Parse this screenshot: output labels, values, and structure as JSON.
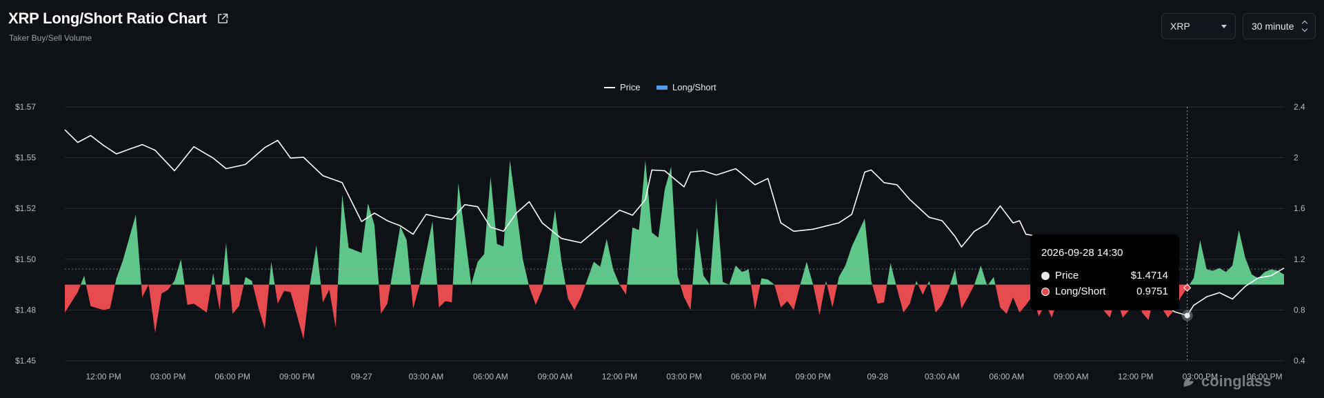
{
  "header": {
    "title": "XRP Long/Short Ratio Chart",
    "subtitle": "Taker Buy/Sell Volume",
    "symbol_select": "XRP",
    "interval_select": "30 minute"
  },
  "colors": {
    "background": "#0e1116",
    "price_line": "#ffffff",
    "long_fill": "#5fc68a",
    "short_fill": "#e64b50",
    "legend_ls": "#4f9df0",
    "grid": "#2a2f36"
  },
  "tooltip": {
    "date": "2026-09-28 14:30",
    "price_label": "Price",
    "price_value": "$1.4714",
    "ls_label": "Long/Short",
    "ls_value": "0.9751"
  },
  "watermark": "coinglass",
  "chart_data": {
    "type": "line",
    "legend": [
      {
        "name": "Price",
        "icon": "line"
      },
      {
        "name": "Long/Short",
        "icon": "area"
      }
    ],
    "legend_position": "top-center",
    "grid": true,
    "y_left": {
      "ticks": [
        "$1.57",
        "$1.55",
        "$1.52",
        "$1.50",
        "$1.48",
        "$1.45"
      ],
      "range": [
        1.45,
        1.57
      ]
    },
    "y_right": {
      "ticks": [
        "2.4",
        "2",
        "1.6",
        "1.2",
        "0.8",
        "0.4"
      ],
      "range": [
        0.4,
        2.4
      ],
      "baseline": 1.0
    },
    "x_ticks": [
      {
        "i": 6,
        "label": "12:00 PM"
      },
      {
        "i": 16,
        "label": "03:00 PM"
      },
      {
        "i": 26,
        "label": "06:00 PM"
      },
      {
        "i": 36,
        "label": "09:00 PM"
      },
      {
        "i": 46,
        "label": "09-27"
      },
      {
        "i": 56,
        "label": "03:00 AM"
      },
      {
        "i": 66,
        "label": "06:00 AM"
      },
      {
        "i": 76,
        "label": "09:00 AM"
      },
      {
        "i": 86,
        "label": "12:00 PM"
      },
      {
        "i": 96,
        "label": "03:00 PM"
      },
      {
        "i": 106,
        "label": "06:00 PM"
      },
      {
        "i": 116,
        "label": "09:00 PM"
      },
      {
        "i": 126,
        "label": "09-28"
      },
      {
        "i": 136,
        "label": "03:00 AM"
      },
      {
        "i": 146,
        "label": "06:00 AM"
      },
      {
        "i": 156,
        "label": "09:00 AM"
      },
      {
        "i": 166,
        "label": "12:00 PM"
      },
      {
        "i": 176,
        "label": "03:00 PM"
      },
      {
        "i": 186,
        "label": "06:00 PM"
      }
    ],
    "n_points": 190,
    "hover_index": 174,
    "price_anchors": [
      [
        0,
        1.5592
      ],
      [
        2,
        1.5532
      ],
      [
        4,
        1.5565
      ],
      [
        6,
        1.5518
      ],
      [
        8,
        1.5478
      ],
      [
        12,
        1.5522
      ],
      [
        14,
        1.5495
      ],
      [
        17,
        1.5398
      ],
      [
        20,
        1.5512
      ],
      [
        23,
        1.5458
      ],
      [
        25,
        1.5408
      ],
      [
        28,
        1.5428
      ],
      [
        31,
        1.5508
      ],
      [
        33,
        1.5542
      ],
      [
        35,
        1.5458
      ],
      [
        37,
        1.5462
      ],
      [
        40,
        1.5375
      ],
      [
        43,
        1.5342
      ],
      [
        46,
        1.5158
      ],
      [
        48,
        1.5198
      ],
      [
        50,
        1.5162
      ],
      [
        52,
        1.5138
      ],
      [
        54,
        1.5098
      ],
      [
        56,
        1.5192
      ],
      [
        58,
        1.5178
      ],
      [
        60,
        1.5168
      ],
      [
        62,
        1.5238
      ],
      [
        64,
        1.5228
      ],
      [
        66,
        1.5132
      ],
      [
        68,
        1.5112
      ],
      [
        70,
        1.5198
      ],
      [
        72,
        1.5252
      ],
      [
        74,
        1.5152
      ],
      [
        77,
        1.5078
      ],
      [
        80,
        1.5058
      ],
      [
        83,
        1.5135
      ],
      [
        86,
        1.5212
      ],
      [
        88,
        1.5188
      ],
      [
        90,
        1.5262
      ],
      [
        91,
        1.5402
      ],
      [
        93,
        1.5398
      ],
      [
        96,
        1.5322
      ],
      [
        97,
        1.5392
      ],
      [
        99,
        1.5398
      ],
      [
        101,
        1.5378
      ],
      [
        104,
        1.5408
      ],
      [
        107,
        1.5332
      ],
      [
        109,
        1.5362
      ],
      [
        111,
        1.5152
      ],
      [
        113,
        1.5112
      ],
      [
        116,
        1.5122
      ],
      [
        120,
        1.5152
      ],
      [
        122,
        1.5192
      ],
      [
        124,
        1.5392
      ],
      [
        125,
        1.5402
      ],
      [
        127,
        1.5342
      ],
      [
        129,
        1.5332
      ],
      [
        131,
        1.5262
      ],
      [
        134,
        1.5178
      ],
      [
        136,
        1.5162
      ],
      [
        138,
        1.5088
      ],
      [
        139,
        1.5038
      ],
      [
        141,
        1.5112
      ],
      [
        143,
        1.5148
      ],
      [
        145,
        1.5232
      ],
      [
        147,
        1.5152
      ],
      [
        148,
        1.5162
      ],
      [
        149,
        1.5098
      ],
      [
        152,
        1.5082
      ],
      [
        155,
        1.5
      ],
      [
        158,
        1.4962
      ],
      [
        161,
        1.4912
      ],
      [
        164,
        1.4862
      ],
      [
        167,
        1.4822
      ],
      [
        170,
        1.4782
      ],
      [
        172,
        1.4732
      ],
      [
        174,
        1.4714
      ],
      [
        175,
        1.4762
      ],
      [
        177,
        1.4802
      ],
      [
        179,
        1.4822
      ],
      [
        181,
        1.4792
      ],
      [
        183,
        1.4852
      ],
      [
        185,
        1.4892
      ],
      [
        187,
        1.4902
      ],
      [
        189,
        1.4938
      ]
    ],
    "ls_anchors": [
      [
        0,
        0.78
      ],
      [
        1,
        0.86
      ],
      [
        2,
        0.94
      ],
      [
        3,
        1.07
      ],
      [
        4,
        0.83
      ],
      [
        6,
        0.8
      ],
      [
        7,
        0.81
      ],
      [
        8,
        1.05
      ],
      [
        9,
        1.19
      ],
      [
        11,
        1.55
      ],
      [
        12,
        0.9
      ],
      [
        13,
        1.0
      ],
      [
        14,
        0.62
      ],
      [
        15,
        0.93
      ],
      [
        16,
        0.96
      ],
      [
        17,
        1.03
      ],
      [
        18,
        1.2
      ],
      [
        19,
        0.84
      ],
      [
        20,
        0.85
      ],
      [
        22,
        0.78
      ],
      [
        23,
        1.09
      ],
      [
        24,
        0.8
      ],
      [
        25,
        1.33
      ],
      [
        26,
        0.77
      ],
      [
        27,
        0.83
      ],
      [
        28,
        1.06
      ],
      [
        29,
        1.03
      ],
      [
        30,
        0.82
      ],
      [
        31,
        0.65
      ],
      [
        32,
        1.18
      ],
      [
        33,
        0.85
      ],
      [
        34,
        0.95
      ],
      [
        35,
        0.94
      ],
      [
        37,
        0.57
      ],
      [
        38,
        1.0
      ],
      [
        39,
        1.31
      ],
      [
        40,
        0.86
      ],
      [
        41,
        0.96
      ],
      [
        42,
        0.66
      ],
      [
        43,
        1.71
      ],
      [
        44,
        1.29
      ],
      [
        46,
        1.25
      ],
      [
        47,
        1.64
      ],
      [
        48,
        1.47
      ],
      [
        49,
        0.77
      ],
      [
        50,
        0.85
      ],
      [
        52,
        1.46
      ],
      [
        53,
        1.35
      ],
      [
        54,
        0.81
      ],
      [
        55,
        1.0
      ],
      [
        57,
        1.5
      ],
      [
        58,
        0.82
      ],
      [
        59,
        0.87
      ],
      [
        60,
        0.86
      ],
      [
        61,
        1.8
      ],
      [
        62,
        1.4
      ],
      [
        63,
        1.0
      ],
      [
        64,
        1.18
      ],
      [
        65,
        1.24
      ],
      [
        66,
        1.85
      ],
      [
        67,
        1.32
      ],
      [
        68,
        1.3
      ],
      [
        69,
        1.98
      ],
      [
        71,
        1.2
      ],
      [
        72,
        0.98
      ],
      [
        73,
        0.84
      ],
      [
        74,
        0.96
      ],
      [
        75,
        1.25
      ],
      [
        76,
        1.59
      ],
      [
        77,
        1.18
      ],
      [
        78,
        0.89
      ],
      [
        79,
        0.8
      ],
      [
        80,
        0.9
      ],
      [
        82,
        1.18
      ],
      [
        83,
        1.14
      ],
      [
        84,
        1.36
      ],
      [
        85,
        1.12
      ],
      [
        86,
        1.0
      ],
      [
        87,
        0.92
      ],
      [
        88,
        1.45
      ],
      [
        89,
        1.43
      ],
      [
        90,
        1.98
      ],
      [
        91,
        1.41
      ],
      [
        92,
        1.37
      ],
      [
        93,
        1.75
      ],
      [
        94,
        1.93
      ],
      [
        95,
        1.07
      ],
      [
        96,
        0.9
      ],
      [
        97,
        0.8
      ],
      [
        98,
        1.45
      ],
      [
        99,
        1.07
      ],
      [
        100,
        1.0
      ],
      [
        101,
        1.68
      ],
      [
        102,
        1.02
      ],
      [
        103,
        1.0
      ],
      [
        104,
        1.15
      ],
      [
        105,
        1.1
      ],
      [
        106,
        1.12
      ],
      [
        107,
        0.8
      ],
      [
        108,
        1.05
      ],
      [
        109,
        1.04
      ],
      [
        110,
        1.0
      ],
      [
        111,
        0.82
      ],
      [
        112,
        0.87
      ],
      [
        113,
        0.8
      ],
      [
        114,
        1.0
      ],
      [
        115,
        1.18
      ],
      [
        116,
        1.0
      ],
      [
        117,
        0.76
      ],
      [
        118,
        1.03
      ],
      [
        119,
        0.82
      ],
      [
        120,
        1.06
      ],
      [
        121,
        1.15
      ],
      [
        122,
        1.3
      ],
      [
        124,
        1.52
      ],
      [
        125,
        1.03
      ],
      [
        126,
        0.85
      ],
      [
        127,
        0.86
      ],
      [
        128,
        1.17
      ],
      [
        129,
        0.97
      ],
      [
        130,
        0.78
      ],
      [
        131,
        0.85
      ],
      [
        132,
        1.03
      ],
      [
        133,
        0.92
      ],
      [
        134,
        1.03
      ],
      [
        135,
        0.78
      ],
      [
        136,
        0.84
      ],
      [
        137,
        0.96
      ],
      [
        138,
        1.12
      ],
      [
        139,
        0.81
      ],
      [
        140,
        0.9
      ],
      [
        141,
        1.0
      ],
      [
        142,
        1.15
      ],
      [
        143,
        0.99
      ],
      [
        144,
        1.06
      ],
      [
        145,
        0.82
      ],
      [
        146,
        0.77
      ],
      [
        147,
        0.9
      ],
      [
        148,
        0.78
      ],
      [
        149,
        0.84
      ],
      [
        150,
        0.91
      ],
      [
        151,
        0.75
      ],
      [
        152,
        0.85
      ],
      [
        153,
        0.74
      ],
      [
        154,
        0.89
      ],
      [
        155,
        0.82
      ],
      [
        156,
        1.06
      ],
      [
        157,
        0.92
      ],
      [
        158,
        1.0
      ],
      [
        159,
        1.05
      ],
      [
        160,
        0.95
      ],
      [
        161,
        0.8
      ],
      [
        162,
        0.74
      ],
      [
        163,
        0.9
      ],
      [
        164,
        0.74
      ],
      [
        165,
        0.8
      ],
      [
        166,
        0.97
      ],
      [
        167,
        0.78
      ],
      [
        168,
        0.72
      ],
      [
        169,
        0.95
      ],
      [
        170,
        0.82
      ],
      [
        171,
        0.74
      ],
      [
        172,
        0.8
      ],
      [
        173,
        0.9
      ],
      [
        174,
        0.9751
      ],
      [
        175,
        1.05
      ],
      [
        176,
        1.35
      ],
      [
        177,
        1.12
      ],
      [
        178,
        1.11
      ],
      [
        179,
        1.13
      ],
      [
        180,
        1.1
      ],
      [
        181,
        1.15
      ],
      [
        182,
        1.43
      ],
      [
        183,
        1.21
      ],
      [
        184,
        1.08
      ],
      [
        185,
        1.05
      ],
      [
        186,
        1.1
      ],
      [
        187,
        1.12
      ],
      [
        188,
        1.11
      ],
      [
        189,
        1.08
      ]
    ]
  }
}
